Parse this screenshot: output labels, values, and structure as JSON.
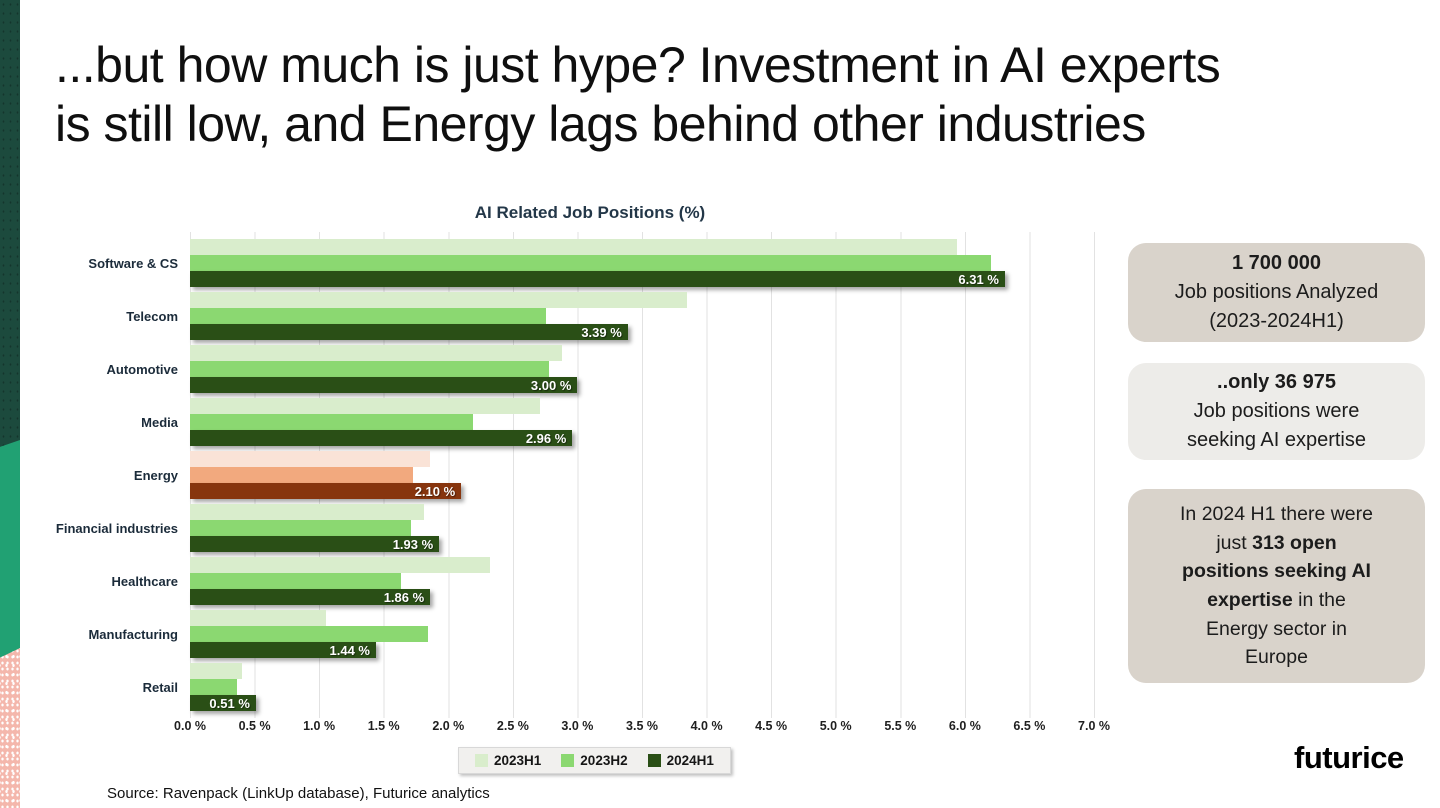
{
  "slide": {
    "title_line1": "...but how much is just hype? Investment in AI experts",
    "title_line2": "is still low, and Energy lags behind other industries",
    "source": "Source: Ravenpack (LinkUp database), Futurice analytics",
    "logo": "futurice"
  },
  "chart_data": {
    "type": "bar",
    "orientation": "horizontal",
    "title": "AI Related Job Positions (%)",
    "categories": [
      "Software & CS",
      "Telecom",
      "Automotive",
      "Media",
      "Energy",
      "Financial industries",
      "Healthcare",
      "Manufacturing",
      "Retail"
    ],
    "series": [
      {
        "name": "2023H1",
        "color": "#d9edcc",
        "values": [
          5.94,
          3.85,
          2.88,
          2.71,
          1.86,
          1.81,
          2.32,
          1.05,
          0.4
        ]
      },
      {
        "name": "2023H2",
        "color": "#8bd871",
        "values": [
          6.2,
          2.76,
          2.78,
          2.19,
          1.73,
          1.71,
          1.63,
          1.84,
          0.36
        ]
      },
      {
        "name": "2024H1",
        "color": "#2a4f16",
        "values": [
          6.31,
          3.39,
          3.0,
          2.96,
          2.1,
          1.93,
          1.86,
          1.44,
          0.51
        ],
        "value_labels": [
          "6.31 %",
          "3.39 %",
          "3.00 %",
          "2.96 %",
          "2.10 %",
          "1.93 %",
          "1.86 %",
          "1.44 %",
          "0.51 %"
        ]
      }
    ],
    "highlight_category": "Energy",
    "highlight_colors": {
      "2023H1": "#fae3d7",
      "2023H2": "#f2a97e",
      "2024H1": "#87350e"
    },
    "xlim": [
      0,
      7.0
    ],
    "tick_step": 0.5,
    "tick_labels": [
      "0.0 %",
      "0.5 %",
      "1.0 %",
      "1.5 %",
      "2.0 %",
      "2.5 %",
      "3.0 %",
      "3.5 %",
      "4.0 %",
      "4.5 %",
      "5.0 %",
      "5.5 %",
      "6.0 %",
      "6.5 %",
      "7.0 %"
    ],
    "grid": true,
    "legend_position": "bottom",
    "legend": [
      "2023H1",
      "2023H2",
      "2024H1"
    ]
  },
  "callouts": [
    {
      "bg": "#d9d3cb",
      "lines": [
        [
          {
            "t": "1 700 000",
            "b": true
          }
        ],
        [
          {
            "t": "Job positions Analyzed"
          }
        ],
        [
          {
            "t": "(2023-2024H1)"
          }
        ]
      ]
    },
    {
      "bg": "#edece9",
      "lines": [
        [
          {
            "t": "..only 36 975",
            "b": true
          }
        ],
        [
          {
            "t": "Job positions were"
          }
        ],
        [
          {
            "t": "seeking AI expertise"
          }
        ]
      ]
    },
    {
      "bg": "#d9d3cb",
      "lines": [
        [
          {
            "t": "In 2024 H1 there were"
          }
        ],
        [
          {
            "t": "just "
          },
          {
            "t": "313 open",
            "b": true
          }
        ],
        [
          {
            "t": "positions seeking AI",
            "b": true
          }
        ],
        [
          {
            "t": "expertise",
            "b": true
          },
          {
            "t": " in the"
          }
        ],
        [
          {
            "t": "Energy sector in"
          }
        ],
        [
          {
            "t": "Europe"
          }
        ]
      ]
    }
  ]
}
